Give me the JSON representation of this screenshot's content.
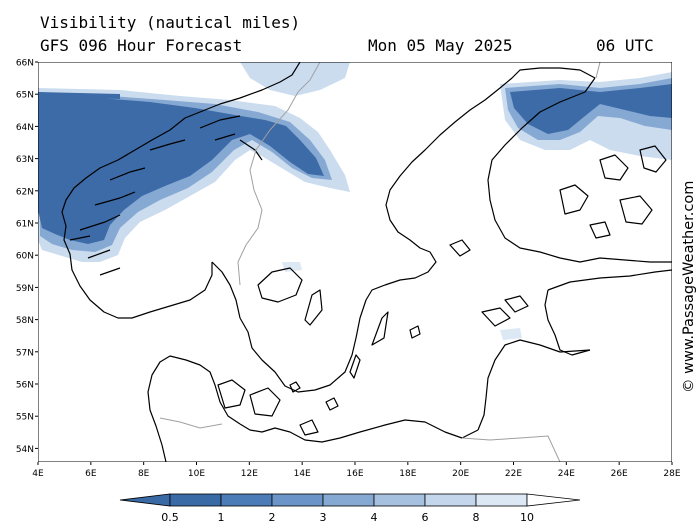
{
  "header": {
    "title": "Visibility (nautical miles)",
    "subtitle": "GFS 096 Hour Forecast",
    "date": "Mon 05 May 2025",
    "hour": "06 UTC"
  },
  "credit": "© www.PassageWeather.com",
  "map": {
    "lat_ticks": [
      "66N",
      "65N",
      "64N",
      "63N",
      "62N",
      "61N",
      "60N",
      "59N",
      "58N",
      "57N",
      "56N",
      "55N",
      "54N"
    ],
    "lon_ticks": [
      "4E",
      "6E",
      "8E",
      "10E",
      "12E",
      "14E",
      "16E",
      "18E",
      "20E",
      "22E",
      "24E",
      "26E",
      "28E"
    ],
    "lat_range": [
      53.7,
      66
    ],
    "lon_range": [
      4,
      28
    ]
  },
  "legend": {
    "labels": [
      "0.5",
      "1",
      "2",
      "3",
      "4",
      "6",
      "8",
      "10"
    ],
    "colors": [
      "#3a6aa6",
      "#4b7cb8",
      "#6b95c8",
      "#86a9d3",
      "#a6c1e0",
      "#c3d6ec",
      "#dde8f5",
      "#ffffff"
    ]
  },
  "colors": {
    "land_fill": "#ffffff",
    "fog_dense": "#3c6ba7",
    "fog_medium": "#86a9d3",
    "fog_light": "#cbdcef",
    "coast": "#000000",
    "border": "#a0a0a0"
  }
}
